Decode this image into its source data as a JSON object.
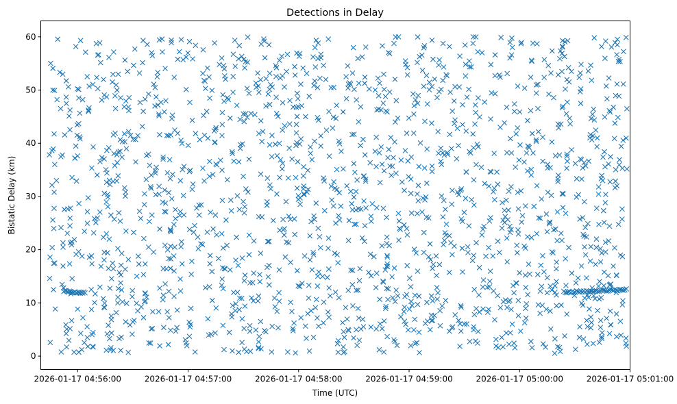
{
  "chart_data": {
    "type": "scatter",
    "title": "Detections in Delay",
    "xlabel": "Time (UTC)",
    "ylabel": "Bistatic Delay (km)",
    "marker": "x",
    "color": "#1f77b4",
    "xlim_seconds_after_04_55_40": [
      0,
      320
    ],
    "ylim": [
      -2.5,
      63
    ],
    "x_ticks": [
      {
        "t": 20,
        "label": "2026-01-17 04:56:00"
      },
      {
        "t": 80,
        "label": "2026-01-17 04:57:00"
      },
      {
        "t": 140,
        "label": "2026-01-17 04:58:00"
      },
      {
        "t": 200,
        "label": "2026-01-17 04:59:00"
      },
      {
        "t": 260,
        "label": "2026-01-17 05:00:00"
      },
      {
        "t": 320,
        "label": "2026-01-17 05:01:00"
      }
    ],
    "y_ticks": [
      0,
      10,
      20,
      30,
      40,
      50,
      60
    ],
    "data_extent": {
      "t_start": 4.5,
      "t_end": 319,
      "delay_min": 0.5,
      "delay_max": 60
    },
    "clutter": {
      "count": 1700,
      "t_range": [
        4.5,
        319
      ],
      "delay_range": [
        0.5,
        60
      ]
    },
    "tracks": [
      {
        "name": "target-track-1",
        "t_range": [
          12.5,
          24
        ],
        "delay_range": [
          12.2,
          11.9
        ],
        "count": 20
      },
      {
        "name": "target-track-2",
        "t_range": [
          284,
          318
        ],
        "delay_range": [
          12.0,
          12.5
        ],
        "count": 45
      }
    ]
  }
}
